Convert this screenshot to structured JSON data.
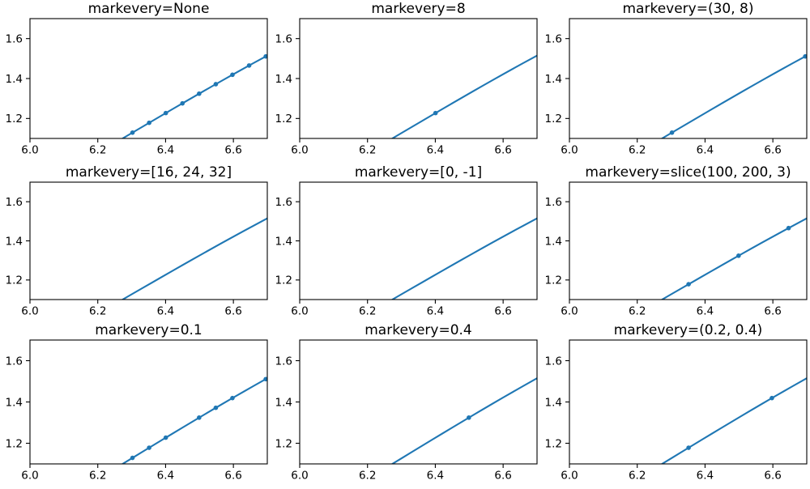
{
  "figure": {
    "background": "#ffffff",
    "line_color": "#1f77b4",
    "marker_color": "#1f77b4",
    "axis_color": "#000000",
    "text_color": "#000000"
  },
  "chart_data": {
    "type": "line",
    "grid": false,
    "legend": null,
    "xlim": [
      6.0,
      6.7
    ],
    "ylim": [
      1.1,
      1.7
    ],
    "xticks": {
      "values": [
        6.0,
        6.2,
        6.4,
        6.6
      ],
      "labels": [
        "6.0",
        "6.2",
        "6.4",
        "6.6"
      ]
    },
    "yticks": {
      "values": [
        1.2,
        1.4,
        1.6
      ],
      "labels": [
        "1.2",
        "1.4",
        "1.6"
      ]
    },
    "line": {
      "x": [
        6.2732,
        6.3,
        6.33,
        6.36,
        6.39,
        6.42,
        6.45,
        6.48,
        6.51,
        6.54,
        6.57,
        6.6,
        6.63,
        6.66,
        6.7
      ],
      "y": [
        1.1,
        1.1268,
        1.1568,
        1.1867,
        1.2166,
        1.2464,
        1.276,
        1.3055,
        1.3349,
        1.364,
        1.3929,
        1.4215,
        1.4499,
        1.478,
        1.5149
      ]
    },
    "subplots": [
      {
        "title": "markevery=None",
        "marker_x": [
          6.3024,
          6.3515,
          6.4006,
          6.4498,
          6.4989,
          6.5481,
          6.5972,
          6.6464,
          6.6955
        ],
        "marker_y": [
          1.1292,
          1.1783,
          1.2272,
          1.2758,
          1.3241,
          1.3718,
          1.4189,
          1.4653,
          1.5107
        ]
      },
      {
        "title": "markevery=8",
        "marker_x": [
          6.4006
        ],
        "marker_y": [
          1.2272
        ]
      },
      {
        "title": "markevery=(30, 8)",
        "marker_x": [
          6.3024,
          6.6955
        ],
        "marker_y": [
          1.1292,
          1.5107
        ]
      },
      {
        "title": "markevery=[16, 24, 32]",
        "marker_x": [],
        "marker_y": []
      },
      {
        "title": "markevery=[0, -1]",
        "marker_x": [],
        "marker_y": []
      },
      {
        "title": "markevery=slice(100, 200, 3)",
        "marker_x": [
          6.3515,
          6.4989,
          6.6464
        ],
        "marker_y": [
          1.1783,
          1.3241,
          1.4653
        ]
      },
      {
        "title": "markevery=0.1",
        "marker_x": [
          6.3024,
          6.3515,
          6.4006,
          6.4989,
          6.5481,
          6.5972,
          6.6955
        ],
        "marker_y": [
          1.1292,
          1.1783,
          1.2272,
          1.3241,
          1.3718,
          1.4189,
          1.5107
        ]
      },
      {
        "title": "markevery=0.4",
        "marker_x": [
          6.4989
        ],
        "marker_y": [
          1.3241
        ]
      },
      {
        "title": "markevery=(0.2, 0.4)",
        "marker_x": [
          6.3515,
          6.5972
        ],
        "marker_y": [
          1.1783,
          1.4189
        ]
      }
    ]
  }
}
